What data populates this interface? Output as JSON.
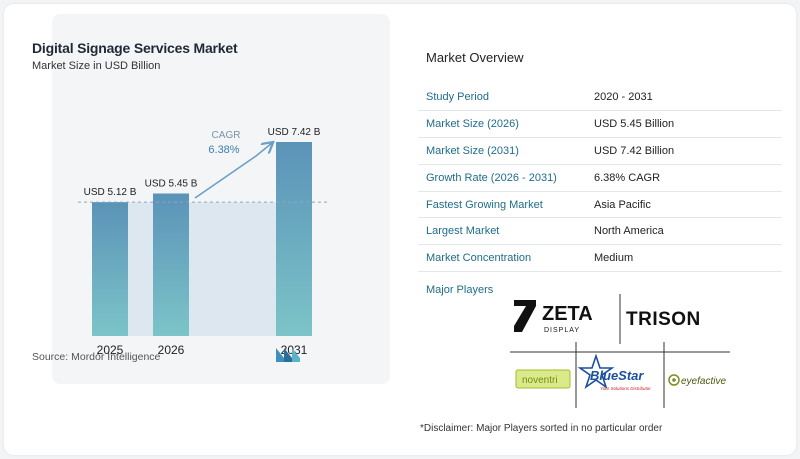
{
  "chart_data": {
    "type": "bar",
    "title": "Digital Signage Services Market",
    "subtitle": "Market Size in USD Billion",
    "categories": [
      "2025",
      "2026",
      "2031"
    ],
    "values": [
      5.12,
      5.45,
      7.42
    ],
    "value_labels": [
      "USD 5.12 B",
      "USD 5.45 B",
      "USD 7.42 B"
    ],
    "cagr_label": "CAGR",
    "cagr_value": "6.38%",
    "source": "Source:  Mordor Intelligence",
    "colors": {
      "bar_top": "#5b93b8",
      "bar_bottom": "#7cc4c8",
      "shade": "#dde7f0",
      "cagr": "#6aa0c4"
    }
  },
  "overview": {
    "title": "Market Overview",
    "rows": [
      {
        "key": "Study Period",
        "value": "2020 - 2031"
      },
      {
        "key": "Market Size (2026)",
        "value": "USD 5.45 Billion"
      },
      {
        "key": "Market Size (2031)",
        "value": "USD 7.42 Billion"
      },
      {
        "key": "Growth Rate (2026 - 2031)",
        "value": "6.38% CAGR"
      },
      {
        "key": "Fastest Growing Market",
        "value": "Asia Pacific"
      },
      {
        "key": "Largest Market",
        "value": "North America"
      },
      {
        "key": "Market Concentration",
        "value": "Medium"
      }
    ],
    "players_label": "Major Players",
    "players": {
      "zeta": "ZETA",
      "zeta_sub": "DISPLAY",
      "trison": "TRISON",
      "noventri": "noventri",
      "bluestar": "BlueStar",
      "bluestar_tag": "Your Solutions Distributor",
      "eyefactive": "eyefactive"
    },
    "disclaimer": "*Disclaimer: Major Players sorted in no particular order"
  }
}
